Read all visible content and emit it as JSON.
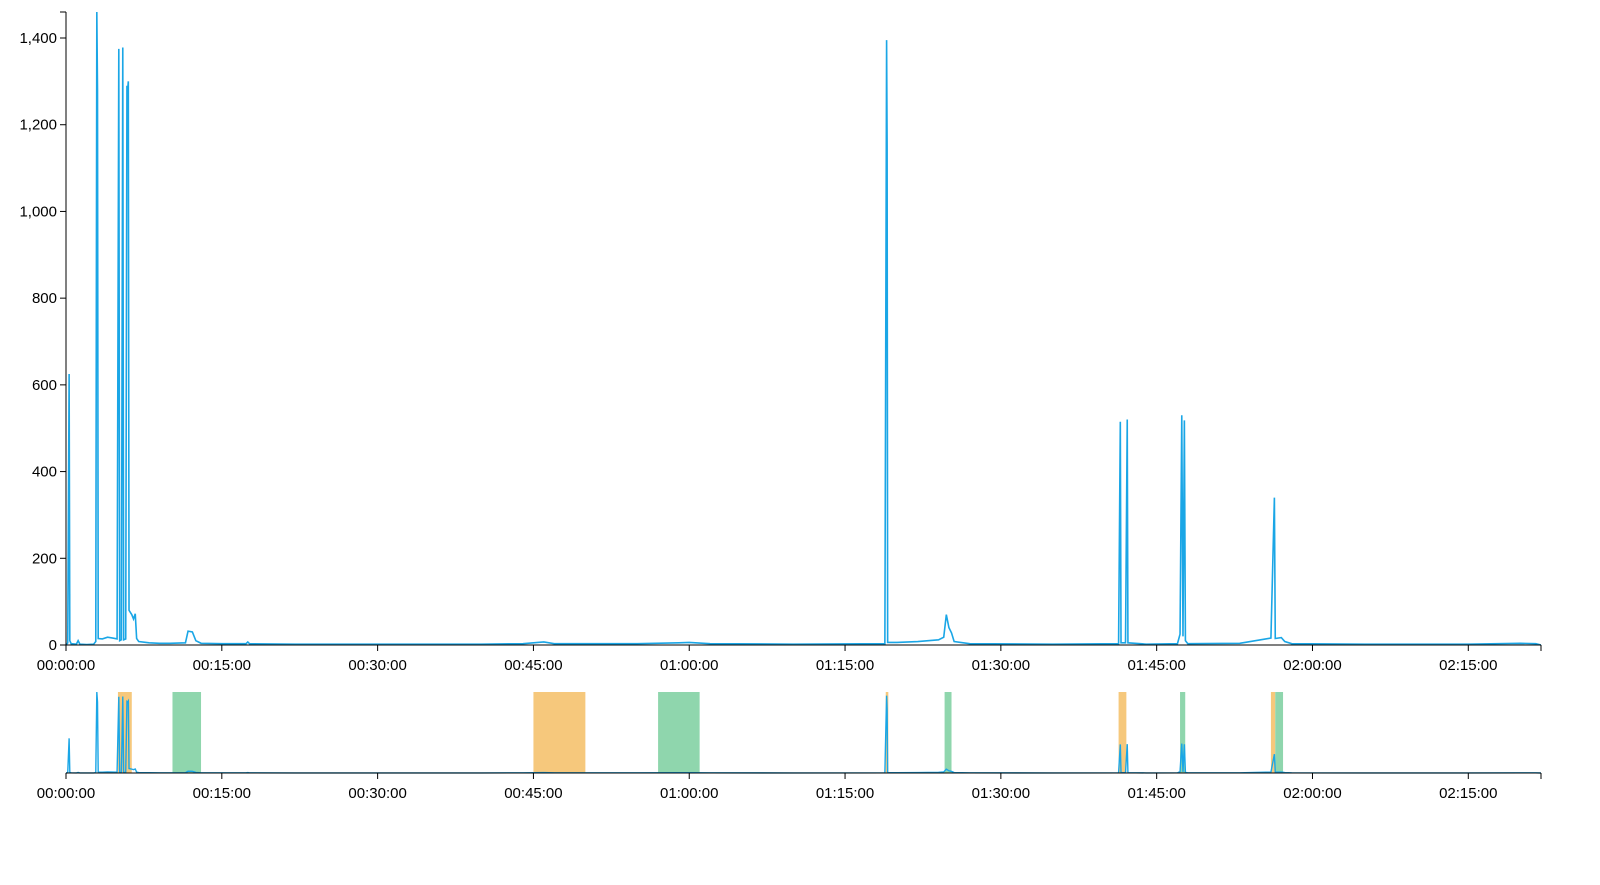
{
  "colors": {
    "line": "#1aa6e6",
    "context_line": "#1aa6e6",
    "band_orange": "#f6c87c",
    "band_green": "#8fd6ad",
    "axis": "#000000"
  },
  "chart_data": [
    {
      "id": "focus",
      "type": "line",
      "title": "",
      "xlabel": "",
      "ylabel": "",
      "xlim": [
        "00:00:00",
        "02:22:00"
      ],
      "ylim": [
        0,
        1460
      ],
      "x_tick_labels": [
        "00:00:00",
        "00:15:00",
        "00:30:00",
        "00:45:00",
        "01:00:00",
        "01:15:00",
        "01:30:00",
        "01:45:00",
        "02:00:00",
        "02:15:00"
      ],
      "y_tick_labels": [
        "0",
        "200",
        "400",
        "600",
        "800",
        "1,000",
        "1,200",
        "1,400"
      ],
      "grid": false,
      "series": [
        {
          "points": [
            [
              "00:00:00",
              0
            ],
            [
              "00:00:10",
              5
            ],
            [
              "00:00:18",
              625
            ],
            [
              "00:00:22",
              10
            ],
            [
              "00:00:30",
              3
            ],
            [
              "00:01:00",
              2
            ],
            [
              "00:01:10",
              10
            ],
            [
              "00:01:20",
              2
            ],
            [
              "00:02:00",
              1
            ],
            [
              "00:02:40",
              2
            ],
            [
              "00:02:52",
              8
            ],
            [
              "00:02:58",
              1460
            ],
            [
              "00:03:02",
              1280
            ],
            [
              "00:03:06",
              15
            ],
            [
              "00:03:30",
              14
            ],
            [
              "00:04:00",
              18
            ],
            [
              "00:04:30",
              16
            ],
            [
              "00:04:55",
              14
            ],
            [
              "00:05:05",
              1375
            ],
            [
              "00:05:10",
              10
            ],
            [
              "00:05:20",
              12
            ],
            [
              "00:05:28",
              1378
            ],
            [
              "00:05:33",
              12
            ],
            [
              "00:05:45",
              14
            ],
            [
              "00:05:52",
              1290
            ],
            [
              "00:05:56",
              1280
            ],
            [
              "00:06:00",
              1300
            ],
            [
              "00:06:04",
              80
            ],
            [
              "00:06:20",
              70
            ],
            [
              "00:06:30",
              60
            ],
            [
              "00:06:40",
              72
            ],
            [
              "00:06:48",
              15
            ],
            [
              "00:07:00",
              8
            ],
            [
              "00:08:00",
              5
            ],
            [
              "00:09:00",
              4
            ],
            [
              "00:10:00",
              4
            ],
            [
              "00:11:30",
              5
            ],
            [
              "00:11:45",
              32
            ],
            [
              "00:12:10",
              30
            ],
            [
              "00:12:30",
              10
            ],
            [
              "00:13:00",
              4
            ],
            [
              "00:15:00",
              3
            ],
            [
              "00:17:20",
              3
            ],
            [
              "00:17:30",
              7
            ],
            [
              "00:17:40",
              3
            ],
            [
              "00:22:00",
              2
            ],
            [
              "00:30:00",
              2
            ],
            [
              "00:40:00",
              2
            ],
            [
              "00:44:00",
              3
            ],
            [
              "00:46:00",
              7
            ],
            [
              "00:47:00",
              3
            ],
            [
              "00:55:00",
              3
            ],
            [
              "00:59:00",
              5
            ],
            [
              "01:00:00",
              6
            ],
            [
              "01:02:00",
              3
            ],
            [
              "01:10:00",
              2
            ],
            [
              "01:18:50",
              3
            ],
            [
              "01:19:00",
              1395
            ],
            [
              "01:19:03",
              1150
            ],
            [
              "01:19:06",
              6
            ],
            [
              "01:20:00",
              6
            ],
            [
              "01:22:00",
              8
            ],
            [
              "01:24:00",
              12
            ],
            [
              "01:24:30",
              18
            ],
            [
              "01:24:45",
              70
            ],
            [
              "01:25:00",
              40
            ],
            [
              "01:25:15",
              28
            ],
            [
              "01:25:30",
              8
            ],
            [
              "01:27:00",
              3
            ],
            [
              "01:35:00",
              2
            ],
            [
              "01:41:20",
              3
            ],
            [
              "01:41:30",
              515
            ],
            [
              "01:41:34",
              5
            ],
            [
              "01:42:00",
              5
            ],
            [
              "01:42:10",
              520
            ],
            [
              "01:42:14",
              5
            ],
            [
              "01:44:00",
              2
            ],
            [
              "01:47:00",
              3
            ],
            [
              "01:47:15",
              25
            ],
            [
              "01:47:25",
              530
            ],
            [
              "01:47:32",
              20
            ],
            [
              "01:47:40",
              518
            ],
            [
              "01:47:46",
              10
            ],
            [
              "01:48:00",
              3
            ],
            [
              "01:53:00",
              4
            ],
            [
              "01:55:00",
              12
            ],
            [
              "01:56:00",
              16
            ],
            [
              "01:56:20",
              340
            ],
            [
              "01:56:25",
              15
            ],
            [
              "01:57:00",
              17
            ],
            [
              "01:57:20",
              8
            ],
            [
              "01:58:00",
              3
            ],
            [
              "02:05:00",
              2
            ],
            [
              "02:15:00",
              2
            ],
            [
              "02:20:00",
              4
            ],
            [
              "02:21:30",
              3
            ],
            [
              "02:22:00",
              0
            ]
          ]
        }
      ]
    },
    {
      "id": "context",
      "type": "line",
      "title": "",
      "xlabel": "",
      "ylabel": "",
      "xlim": [
        "00:00:00",
        "02:22:00"
      ],
      "ylim": [
        0,
        1460
      ],
      "x_tick_labels": [
        "00:00:00",
        "00:15:00",
        "00:30:00",
        "00:45:00",
        "01:00:00",
        "01:15:00",
        "01:30:00",
        "01:45:00",
        "02:00:00",
        "02:15:00"
      ],
      "y_tick_labels": [],
      "grid": false,
      "highlight_bands": [
        {
          "color": "orange",
          "start": "00:05:00",
          "end": "00:06:20"
        },
        {
          "color": "green",
          "start": "00:10:15",
          "end": "00:13:00"
        },
        {
          "color": "orange",
          "start": "00:45:00",
          "end": "00:50:00"
        },
        {
          "color": "green",
          "start": "00:57:00",
          "end": "01:01:00"
        },
        {
          "color": "orange",
          "start": "01:18:55",
          "end": "01:19:10"
        },
        {
          "color": "green",
          "start": "01:24:35",
          "end": "01:25:15"
        },
        {
          "color": "orange",
          "start": "01:41:20",
          "end": "01:42:05"
        },
        {
          "color": "green",
          "start": "01:47:15",
          "end": "01:47:45"
        },
        {
          "color": "orange",
          "start": "01:56:00",
          "end": "01:56:25"
        },
        {
          "color": "green",
          "start": "01:56:25",
          "end": "01:57:10"
        }
      ],
      "series": [
        {
          "points": [
            [
              "00:00:00",
              0
            ],
            [
              "00:00:10",
              5
            ],
            [
              "00:00:18",
              625
            ],
            [
              "00:00:22",
              10
            ],
            [
              "00:00:30",
              3
            ],
            [
              "00:01:00",
              2
            ],
            [
              "00:01:10",
              10
            ],
            [
              "00:01:20",
              2
            ],
            [
              "00:02:00",
              1
            ],
            [
              "00:02:40",
              2
            ],
            [
              "00:02:52",
              8
            ],
            [
              "00:02:58",
              1460
            ],
            [
              "00:03:02",
              1280
            ],
            [
              "00:03:06",
              15
            ],
            [
              "00:03:30",
              14
            ],
            [
              "00:04:00",
              18
            ],
            [
              "00:04:30",
              16
            ],
            [
              "00:04:55",
              14
            ],
            [
              "00:05:05",
              1375
            ],
            [
              "00:05:10",
              10
            ],
            [
              "00:05:20",
              12
            ],
            [
              "00:05:28",
              1378
            ],
            [
              "00:05:33",
              12
            ],
            [
              "00:05:45",
              14
            ],
            [
              "00:05:52",
              1290
            ],
            [
              "00:05:56",
              1280
            ],
            [
              "00:06:00",
              1300
            ],
            [
              "00:06:04",
              80
            ],
            [
              "00:06:20",
              70
            ],
            [
              "00:06:30",
              60
            ],
            [
              "00:06:40",
              72
            ],
            [
              "00:06:48",
              15
            ],
            [
              "00:07:00",
              8
            ],
            [
              "00:08:00",
              5
            ],
            [
              "00:09:00",
              4
            ],
            [
              "00:10:00",
              4
            ],
            [
              "00:11:30",
              5
            ],
            [
              "00:11:45",
              32
            ],
            [
              "00:12:10",
              30
            ],
            [
              "00:12:30",
              10
            ],
            [
              "00:13:00",
              4
            ],
            [
              "00:15:00",
              3
            ],
            [
              "00:17:20",
              3
            ],
            [
              "00:17:30",
              7
            ],
            [
              "00:17:40",
              3
            ],
            [
              "00:22:00",
              2
            ],
            [
              "00:30:00",
              2
            ],
            [
              "00:40:00",
              2
            ],
            [
              "00:44:00",
              3
            ],
            [
              "00:46:00",
              7
            ],
            [
              "00:47:00",
              3
            ],
            [
              "00:55:00",
              3
            ],
            [
              "00:59:00",
              5
            ],
            [
              "01:00:00",
              6
            ],
            [
              "01:02:00",
              3
            ],
            [
              "01:10:00",
              2
            ],
            [
              "01:18:50",
              3
            ],
            [
              "01:19:00",
              1395
            ],
            [
              "01:19:03",
              1150
            ],
            [
              "01:19:06",
              6
            ],
            [
              "01:20:00",
              6
            ],
            [
              "01:22:00",
              8
            ],
            [
              "01:24:00",
              12
            ],
            [
              "01:24:30",
              18
            ],
            [
              "01:24:45",
              70
            ],
            [
              "01:25:00",
              40
            ],
            [
              "01:25:15",
              28
            ],
            [
              "01:25:30",
              8
            ],
            [
              "01:27:00",
              3
            ],
            [
              "01:35:00",
              2
            ],
            [
              "01:41:20",
              3
            ],
            [
              "01:41:30",
              515
            ],
            [
              "01:41:34",
              5
            ],
            [
              "01:42:00",
              5
            ],
            [
              "01:42:10",
              520
            ],
            [
              "01:42:14",
              5
            ],
            [
              "01:44:00",
              2
            ],
            [
              "01:47:00",
              3
            ],
            [
              "01:47:15",
              25
            ],
            [
              "01:47:25",
              530
            ],
            [
              "01:47:32",
              20
            ],
            [
              "01:47:40",
              518
            ],
            [
              "01:47:46",
              10
            ],
            [
              "01:48:00",
              3
            ],
            [
              "01:53:00",
              4
            ],
            [
              "01:55:00",
              12
            ],
            [
              "01:56:00",
              16
            ],
            [
              "01:56:20",
              340
            ],
            [
              "01:56:25",
              15
            ],
            [
              "01:57:00",
              17
            ],
            [
              "01:57:20",
              8
            ],
            [
              "01:58:00",
              3
            ],
            [
              "02:05:00",
              2
            ],
            [
              "02:15:00",
              2
            ],
            [
              "02:20:00",
              4
            ],
            [
              "02:21:30",
              3
            ],
            [
              "02:22:00",
              0
            ]
          ]
        }
      ]
    }
  ]
}
